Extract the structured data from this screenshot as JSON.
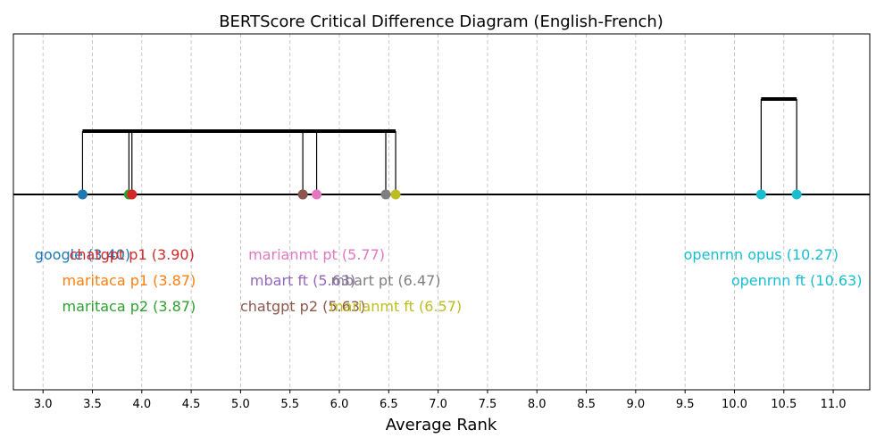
{
  "chart_data": {
    "type": "scatter",
    "title": "BERTScore Critical Difference Diagram (English-French)",
    "xlabel": "Average Rank",
    "ylabel": "",
    "xlim": [
      2.7,
      11.37
    ],
    "x_ticks": [
      3.0,
      3.5,
      4.0,
      4.5,
      5.0,
      5.5,
      6.0,
      6.5,
      7.0,
      7.5,
      8.0,
      8.5,
      9.0,
      9.5,
      10.0,
      10.5,
      11.0
    ],
    "x_tick_labels": [
      "3.0",
      "3.5",
      "4.0",
      "4.5",
      "5.0",
      "5.5",
      "6.0",
      "6.5",
      "7.0",
      "7.5",
      "8.0",
      "8.5",
      "9.0",
      "9.5",
      "10.0",
      "10.5",
      "11.0"
    ],
    "grid": "vertical dashed",
    "models": [
      {
        "name": "google",
        "rank": 3.4,
        "label": "google (3.40)",
        "color": "#1f77b4",
        "row": 0
      },
      {
        "name": "maritaca p1",
        "rank": 3.87,
        "label": "maritaca p1 (3.87)",
        "color": "#ff7f0e",
        "row": 1
      },
      {
        "name": "maritaca p2",
        "rank": 3.87,
        "label": "maritaca p2 (3.87)",
        "color": "#2ca02c",
        "row": 2
      },
      {
        "name": "chatgpt p1",
        "rank": 3.9,
        "label": "chatgpt p1 (3.90)",
        "color": "#d62728",
        "row": 0
      },
      {
        "name": "mbart ft",
        "rank": 5.63,
        "label": "mbart ft (5.63)",
        "color": "#9467bd",
        "row": 1
      },
      {
        "name": "chatgpt p2",
        "rank": 5.63,
        "label": "chatgpt p2 (5.63)",
        "color": "#8c564b",
        "row": 2
      },
      {
        "name": "marianmt pt",
        "rank": 5.77,
        "label": "marianmt pt (5.77)",
        "color": "#e377c2",
        "row": 0
      },
      {
        "name": "mbart pt",
        "rank": 6.47,
        "label": "mbart pt (6.47)",
        "color": "#7f7f7f",
        "row": 1
      },
      {
        "name": "marianmt ft",
        "rank": 6.57,
        "label": "marianmt ft (6.57)",
        "color": "#bcbd22",
        "row": 2
      },
      {
        "name": "openrnn opus",
        "rank": 10.27,
        "label": "openrnn opus (10.27)",
        "color": "#17becf",
        "row": 0
      },
      {
        "name": "openrnn ft",
        "rank": 10.63,
        "label": "openrnn ft (10.63)",
        "color": "#17becf",
        "row": 1
      }
    ],
    "cliques": [
      {
        "from": 3.4,
        "to": 6.57,
        "members": [
          3.4,
          3.87,
          3.9,
          5.63,
          5.77,
          6.47,
          6.57
        ],
        "level": 0
      },
      {
        "from": 10.27,
        "to": 10.63,
        "members": [
          10.27,
          10.63
        ],
        "level": 1
      }
    ]
  }
}
